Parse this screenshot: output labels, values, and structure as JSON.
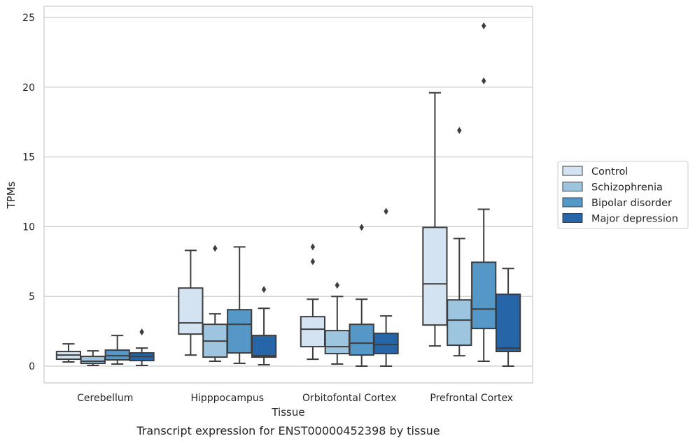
{
  "chart_data": {
    "type": "box",
    "caption": "Transcript expression for ENST00000452398 by tissue",
    "xlabel": "Tissue",
    "ylabel": "TPMs",
    "ylim": [
      -1.2,
      25.8
    ],
    "yticks": [
      0,
      5,
      10,
      15,
      20,
      25
    ],
    "grid": "horizontal",
    "legend_position": "right",
    "categories": [
      "Cerebellum",
      "Hipppocampus",
      "Orbitofontal Cortex",
      "Prefrontal Cortex"
    ],
    "series": [
      {
        "name": "Control",
        "color": "#d4e3f1",
        "boxes": [
          {
            "whislo": 0.3,
            "q1": 0.5,
            "med": 0.8,
            "q3": 1.05,
            "whishi": 1.6,
            "fliers": []
          },
          {
            "whislo": 0.8,
            "q1": 2.3,
            "med": 3.1,
            "q3": 5.6,
            "whishi": 8.3,
            "fliers": []
          },
          {
            "whislo": 0.5,
            "q1": 1.4,
            "med": 2.65,
            "q3": 3.55,
            "whishi": 4.8,
            "fliers": [
              7.5,
              8.55
            ]
          },
          {
            "whislo": 1.45,
            "q1": 2.95,
            "med": 5.9,
            "q3": 9.95,
            "whishi": 19.6,
            "fliers": []
          }
        ]
      },
      {
        "name": "Schizophrenia",
        "color": "#9dc5e0",
        "boxes": [
          {
            "whislo": 0.05,
            "q1": 0.2,
            "med": 0.35,
            "q3": 0.7,
            "whishi": 1.1,
            "fliers": []
          },
          {
            "whislo": 0.35,
            "q1": 0.65,
            "med": 1.8,
            "q3": 3.0,
            "whishi": 3.75,
            "fliers": [
              8.45
            ]
          },
          {
            "whislo": 0.15,
            "q1": 0.9,
            "med": 1.4,
            "q3": 2.55,
            "whishi": 5.0,
            "fliers": [
              5.8
            ]
          },
          {
            "whislo": 0.75,
            "q1": 1.5,
            "med": 3.3,
            "q3": 4.75,
            "whishi": 9.15,
            "fliers": [
              16.9
            ]
          }
        ]
      },
      {
        "name": "Bipolar disorder",
        "color": "#5597c6",
        "boxes": [
          {
            "whislo": 0.15,
            "q1": 0.45,
            "med": 0.75,
            "q3": 1.15,
            "whishi": 2.2,
            "fliers": []
          },
          {
            "whislo": 0.2,
            "q1": 0.95,
            "med": 3.0,
            "q3": 4.05,
            "whishi": 8.55,
            "fliers": []
          },
          {
            "whislo": 0.0,
            "q1": 0.8,
            "med": 1.65,
            "q3": 3.0,
            "whishi": 4.8,
            "fliers": [
              9.95
            ]
          },
          {
            "whislo": 0.35,
            "q1": 2.7,
            "med": 4.1,
            "q3": 7.45,
            "whishi": 11.25,
            "fliers": [
              20.45,
              24.4
            ]
          }
        ]
      },
      {
        "name": "Major depression",
        "color": "#2765a9",
        "boxes": [
          {
            "whislo": 0.05,
            "q1": 0.4,
            "med": 0.7,
            "q3": 0.95,
            "whishi": 1.3,
            "fliers": [
              2.45
            ]
          },
          {
            "whislo": 0.1,
            "q1": 0.65,
            "med": 0.75,
            "q3": 2.2,
            "whishi": 4.15,
            "fliers": [
              5.5
            ]
          },
          {
            "whislo": 0.0,
            "q1": 0.9,
            "med": 1.55,
            "q3": 2.35,
            "whishi": 3.6,
            "fliers": [
              11.1
            ]
          },
          {
            "whislo": 0.0,
            "q1": 1.05,
            "med": 1.3,
            "q3": 5.15,
            "whishi": 7.0,
            "fliers": []
          }
        ]
      }
    ]
  }
}
